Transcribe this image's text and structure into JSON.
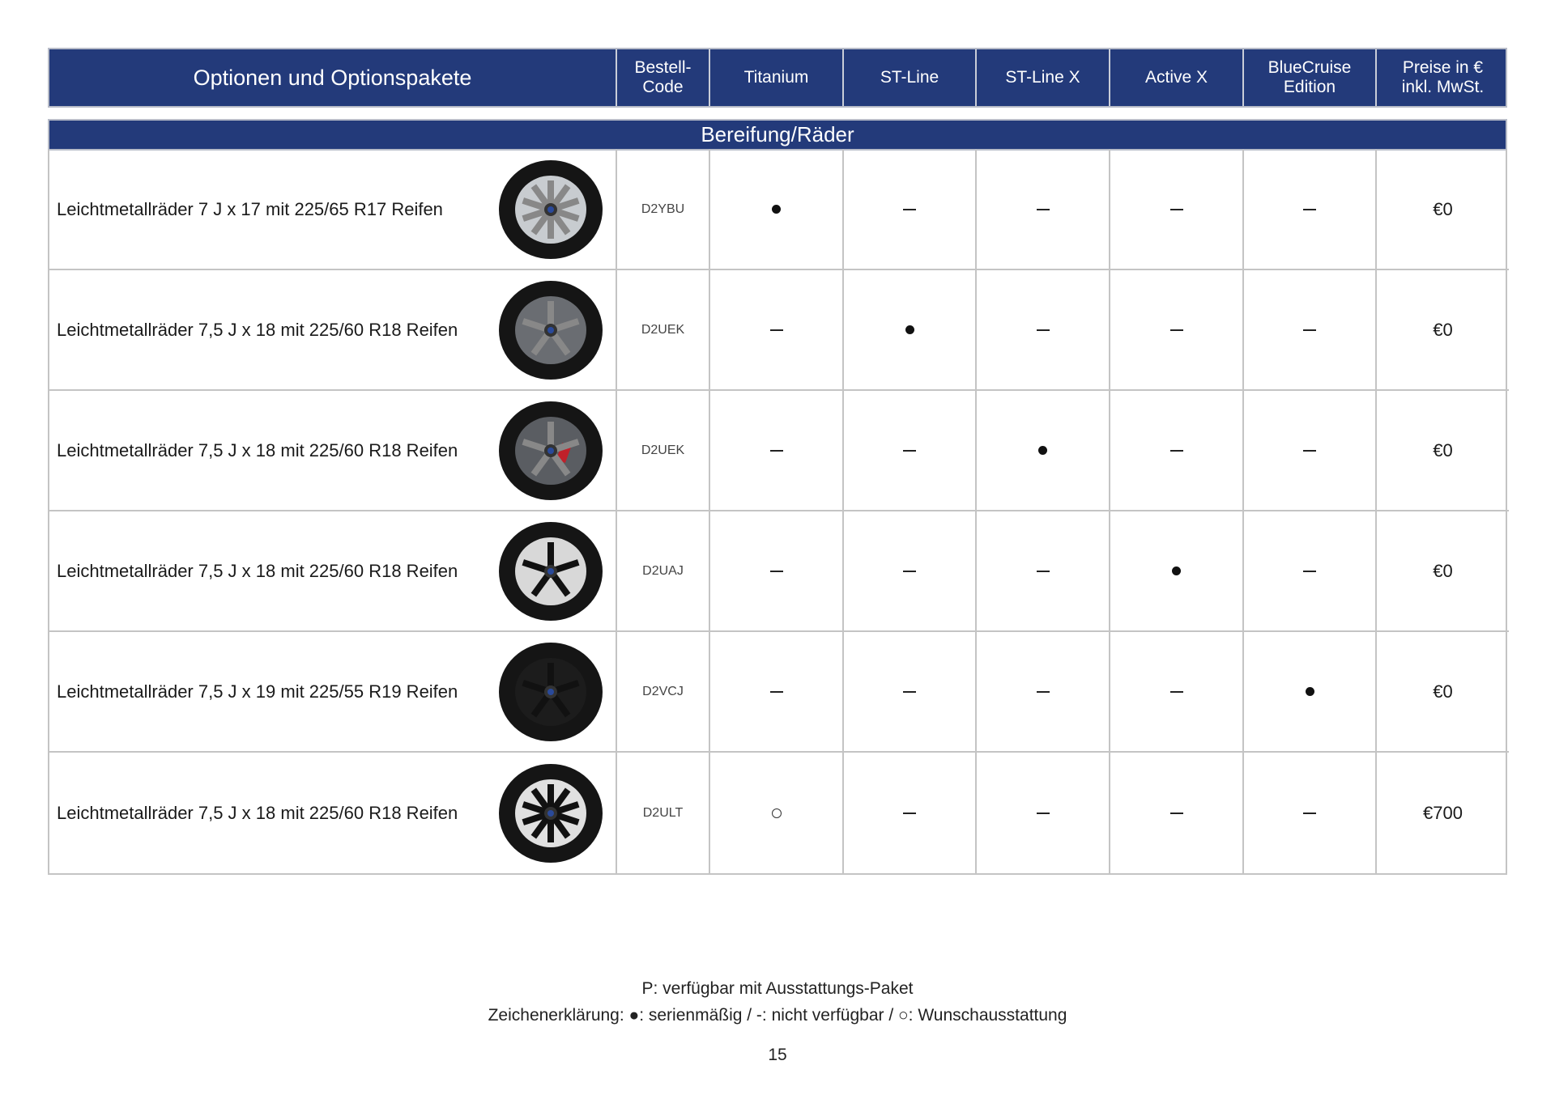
{
  "header": {
    "columns": [
      "Optionen und Optionspakete",
      "Bestell-\nCode",
      "Titanium",
      "ST-Line",
      "ST-Line X",
      "Active X",
      "BlueCruise\nEdition",
      "Preise in €\ninkl. MwSt."
    ]
  },
  "section": "Bereifung/Räder",
  "rows": [
    {
      "desc": "Leichtmetallräder 7 J x 17 mit 225/65 R17 Reifen",
      "code": "D2YBU",
      "marks": [
        "dot",
        "dash",
        "dash",
        "dash",
        "dash"
      ],
      "price": "€0",
      "wheel": "silver-10-spoke"
    },
    {
      "desc": "Leichtmetallräder 7,5 J x 18 mit 225/60 R18 Reifen",
      "code": "D2UEK",
      "marks": [
        "dash",
        "dot",
        "dash",
        "dash",
        "dash"
      ],
      "price": "€0",
      "wheel": "dark-5-spoke"
    },
    {
      "desc": "Leichtmetallräder 7,5 J x 18 mit 225/60 R18 Reifen",
      "code": "D2UEK",
      "marks": [
        "dash",
        "dash",
        "dot",
        "dash",
        "dash"
      ],
      "price": "€0",
      "wheel": "dark-5-spoke-red-caliper"
    },
    {
      "desc": "Leichtmetallräder 7,5 J x 18 mit 225/60 R18 Reifen",
      "code": "D2UAJ",
      "marks": [
        "dash",
        "dash",
        "dash",
        "dot",
        "dash"
      ],
      "price": "€0",
      "wheel": "black-machined"
    },
    {
      "desc": "Leichtmetallräder 7,5 J x 19 mit 225/55 R19 Reifen",
      "code": "D2VCJ",
      "marks": [
        "dash",
        "dash",
        "dash",
        "dash",
        "dot"
      ],
      "price": "€0",
      "wheel": "black-5-spoke"
    },
    {
      "desc": "Leichtmetallräder 7,5 J x 18 mit 225/60 R18 Reifen",
      "code": "D2ULT",
      "marks": [
        "ring",
        "dash",
        "dash",
        "dash",
        "dash"
      ],
      "price": "€700",
      "wheel": "bicolor-multi-spoke"
    }
  ],
  "footer": {
    "note": "P: verfügbar mit Ausstattungs-Paket",
    "legend": "Zeichenerklärung: ●: serienmäßig / -: nicht verfügbar / ○: Wunschausstattung",
    "page": "15"
  },
  "colors": {
    "header_bg": "#233a7a",
    "border": "#c4c4c4"
  }
}
